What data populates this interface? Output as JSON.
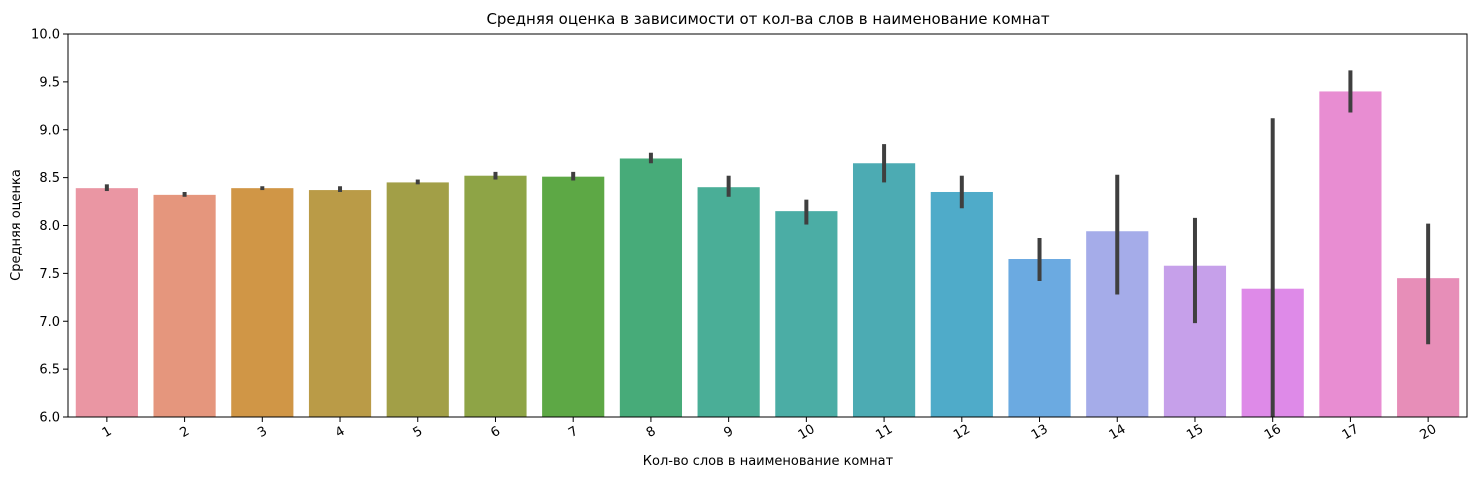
{
  "chart_data": {
    "type": "bar",
    "title": "Средняя оценка в зависимости от кол-ва слов в наименование комнат",
    "xlabel": "Кол-во слов в наименование комнат",
    "ylabel": "Средняя оценка",
    "ylim": [
      6.0,
      10.0
    ],
    "yticks": [
      "6.0",
      "6.5",
      "7.0",
      "7.5",
      "8.0",
      "8.5",
      "9.0",
      "9.5",
      "10.0"
    ],
    "grid": false,
    "categories": [
      "1",
      "2",
      "3",
      "4",
      "5",
      "6",
      "7",
      "8",
      "9",
      "10",
      "11",
      "12",
      "13",
      "14",
      "15",
      "16",
      "17",
      "20"
    ],
    "values": [
      8.39,
      8.32,
      8.39,
      8.37,
      8.45,
      8.52,
      8.51,
      8.7,
      8.4,
      8.15,
      8.65,
      8.35,
      7.65,
      7.94,
      7.58,
      7.34,
      9.4,
      7.45
    ],
    "ci_low": [
      8.36,
      8.3,
      8.37,
      8.35,
      8.43,
      8.48,
      8.47,
      8.65,
      8.3,
      8.01,
      8.45,
      8.18,
      7.42,
      7.28,
      6.98,
      6.0,
      9.18,
      6.76
    ],
    "ci_high": [
      8.43,
      8.35,
      8.41,
      8.41,
      8.48,
      8.56,
      8.56,
      8.76,
      8.52,
      8.27,
      8.85,
      8.52,
      7.87,
      8.53,
      8.08,
      9.12,
      9.62,
      8.02
    ],
    "colors": [
      "#ea96a3",
      "#e5967d",
      "#d09646",
      "#ba9b47",
      "#a29f47",
      "#8ea446",
      "#5da845",
      "#47ab79",
      "#4aae97",
      "#4bada5",
      "#4cabb3",
      "#4fabc9",
      "#6baae1",
      "#a5ace9",
      "#c6a0ea",
      "#de8ae8",
      "#e88dd2",
      "#e78eb8"
    ]
  }
}
